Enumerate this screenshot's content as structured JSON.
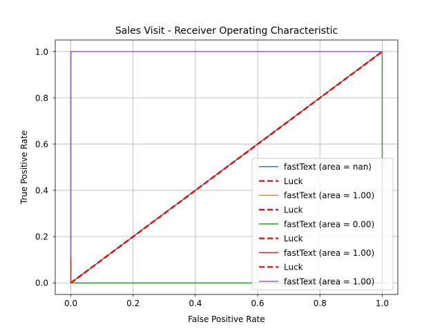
{
  "chart_data": {
    "type": "line",
    "title": "Sales Visit - Receiver Operating Characteristic",
    "xlabel": "False Positive Rate",
    "ylabel": "True Positive Rate",
    "xlim": [
      -0.05,
      1.05
    ],
    "ylim": [
      -0.05,
      1.05
    ],
    "xticks": [
      0.0,
      0.2,
      0.4,
      0.6,
      0.8,
      1.0
    ],
    "yticks": [
      0.0,
      0.2,
      0.4,
      0.6,
      0.8,
      1.0
    ],
    "xtick_labels": [
      "0.0",
      "0.2",
      "0.4",
      "0.6",
      "0.8",
      "1.0"
    ],
    "ytick_labels": [
      "0.0",
      "0.2",
      "0.4",
      "0.6",
      "0.8",
      "1.0"
    ],
    "grid": true,
    "legend_position": "lower-right",
    "series": [
      {
        "name": "fastText (area = nan)",
        "color": "#1f77b4",
        "style": "solid",
        "x": [
          0.0,
          1.0
        ],
        "y": [
          0.0,
          1.0
        ]
      },
      {
        "name": "Luck",
        "color": "#ff0000",
        "style": "dashed",
        "x": [
          0.0,
          1.0
        ],
        "y": [
          0.0,
          1.0
        ]
      },
      {
        "name": "fastText (area = 1.00)",
        "color": "#ff7f0e",
        "style": "solid",
        "x": [
          0.0,
          0.0,
          1.0
        ],
        "y": [
          0.0,
          1.0,
          1.0
        ]
      },
      {
        "name": "Luck",
        "color": "#ff0000",
        "style": "dashed",
        "x": [
          0.0,
          1.0
        ],
        "y": [
          0.0,
          1.0
        ]
      },
      {
        "name": "fastText (area = 0.00)",
        "color": "#2ca02c",
        "style": "solid",
        "x": [
          0.0,
          1.0,
          1.0
        ],
        "y": [
          0.0,
          0.0,
          1.0
        ]
      },
      {
        "name": "Luck",
        "color": "#ff0000",
        "style": "dashed",
        "x": [
          0.0,
          1.0
        ],
        "y": [
          0.0,
          1.0
        ]
      },
      {
        "name": "fastText (area = 1.00)",
        "color": "#d62728",
        "style": "solid",
        "x": [
          0.0,
          0.0,
          1.0
        ],
        "y": [
          0.0,
          1.0,
          1.0
        ]
      },
      {
        "name": "Luck",
        "color": "#ff0000",
        "style": "dashed",
        "x": [
          0.0,
          1.0
        ],
        "y": [
          0.0,
          1.0
        ]
      },
      {
        "name": "fastText (area = 1.00)",
        "color": "#9467bd",
        "style": "solid",
        "x": [
          0.0,
          0.0,
          1.0
        ],
        "y": [
          0.11,
          1.0,
          1.0
        ]
      }
    ]
  }
}
